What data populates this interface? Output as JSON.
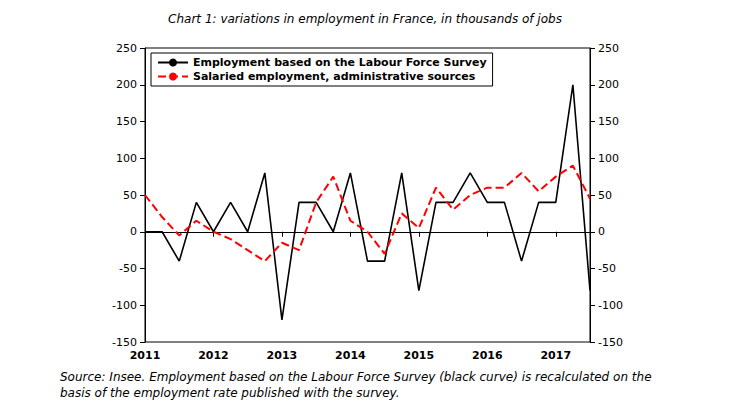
{
  "chart_data": {
    "type": "line",
    "title": "Chart 1: variations in employment in France, in thousands of jobs",
    "source": "Source: Insee. Employment based on the Labour Force Survey (black curve) is recalculated on the basis of the employment rate published with the survey.",
    "categories": [
      "2011",
      null,
      null,
      null,
      "2012",
      null,
      null,
      null,
      "2013",
      null,
      null,
      null,
      "2014",
      null,
      null,
      null,
      "2015",
      null,
      null,
      null,
      "2016",
      null,
      null,
      null,
      "2017",
      null,
      null
    ],
    "series": [
      {
        "name": "Employment based on the Labour Force Survey",
        "color": "#000000",
        "line_style": "solid",
        "values": [
          0,
          0,
          -40,
          40,
          0,
          40,
          0,
          80,
          -120,
          40,
          40,
          0,
          80,
          -40,
          -40,
          80,
          -80,
          40,
          40,
          80,
          40,
          40,
          -40,
          40,
          40,
          200,
          -80
        ]
      },
      {
        "name": "Salaried employment, administrative sources",
        "color": "#ff0000",
        "line_style": "dashed",
        "values": [
          50,
          20,
          -5,
          15,
          0,
          -10,
          -25,
          -40,
          -15,
          -25,
          40,
          75,
          15,
          0,
          -30,
          25,
          5,
          60,
          30,
          50,
          60,
          60,
          80,
          55,
          75,
          90,
          45
        ]
      }
    ],
    "ylim": [
      -150,
      250
    ],
    "yticks": [
      -150,
      -100,
      -50,
      0,
      50,
      100,
      150,
      200,
      250
    ],
    "y2lim": [
      -150,
      250
    ],
    "y2ticks": [
      -150,
      -100,
      -50,
      0,
      50,
      100,
      150,
      200,
      250
    ],
    "grid": false,
    "legend": "upper left"
  }
}
